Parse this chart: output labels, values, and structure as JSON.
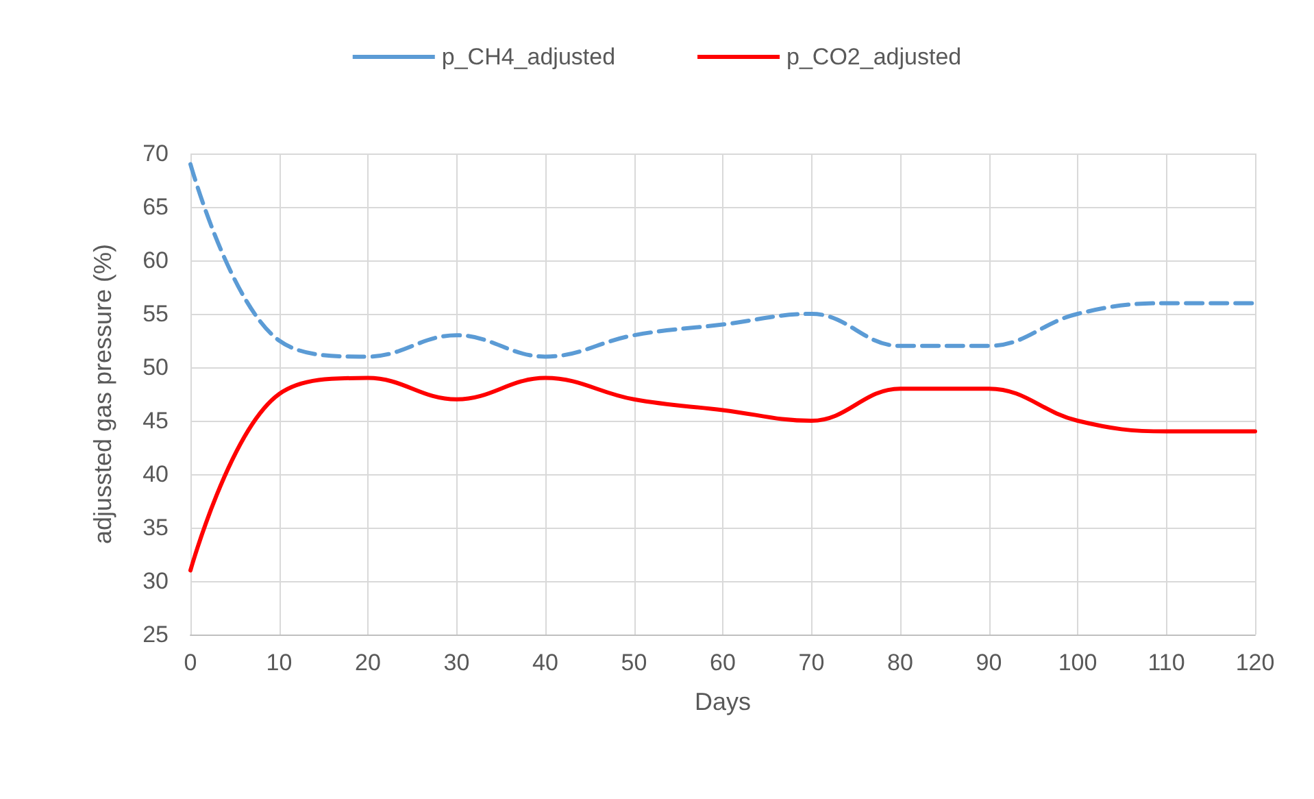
{
  "chart_data": {
    "type": "line",
    "xlabel": "Days",
    "ylabel": "adjussted gas pressure (%)",
    "x": [
      0,
      10,
      20,
      30,
      40,
      50,
      60,
      70,
      80,
      90,
      100,
      110,
      120
    ],
    "series": [
      {
        "name": "p_CH4_adjusted",
        "color": "#5b9bd5",
        "line_style": "dashed",
        "values": [
          69,
          52.5,
          51,
          53,
          51,
          53,
          54,
          55,
          52,
          52,
          55,
          56,
          56
        ]
      },
      {
        "name": "p_CO2_adjusted",
        "color": "#ff0000",
        "line_style": "solid",
        "values": [
          31,
          47.5,
          49,
          47,
          49,
          47,
          46,
          45,
          48,
          48,
          45,
          44,
          44
        ]
      }
    ],
    "xlim": [
      0,
      120
    ],
    "xticks": [
      0,
      10,
      20,
      30,
      40,
      50,
      60,
      70,
      80,
      90,
      100,
      110,
      120
    ],
    "ylim": [
      25,
      70
    ],
    "yticks": [
      25,
      30,
      35,
      40,
      45,
      50,
      55,
      60,
      65,
      70
    ],
    "grid": true,
    "legend": "top",
    "marker": "none"
  }
}
